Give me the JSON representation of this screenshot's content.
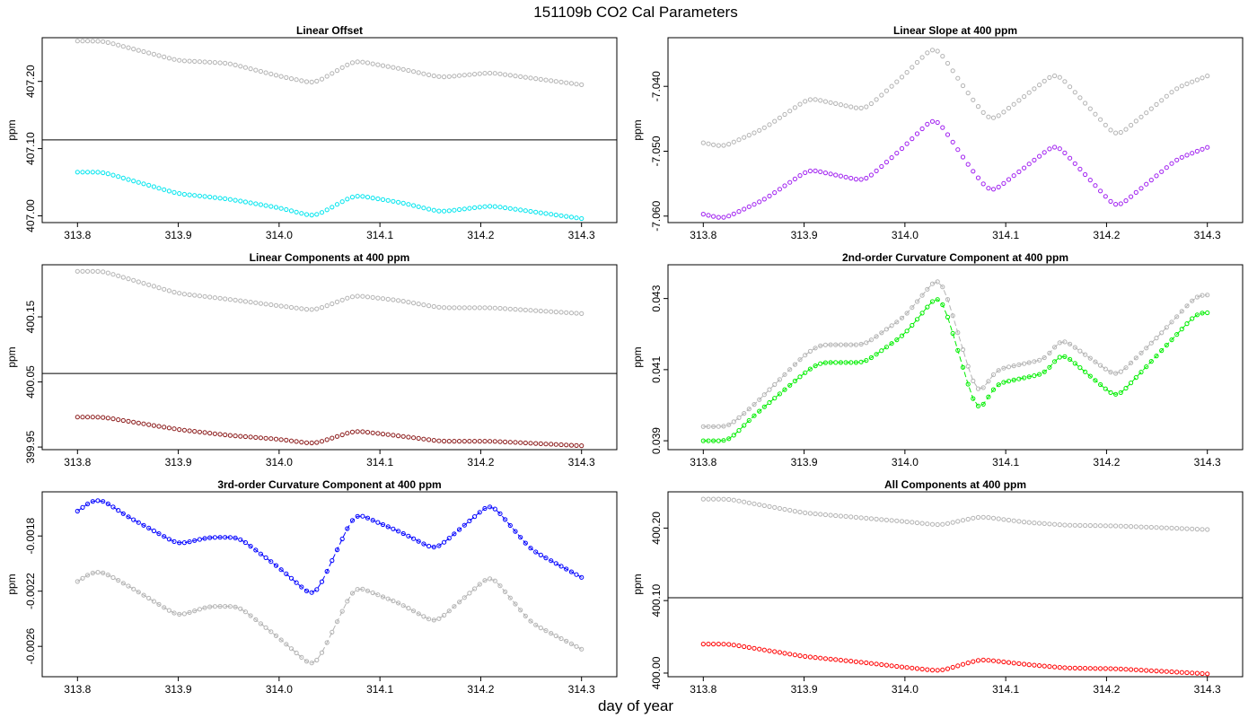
{
  "title": "151109b   CO2 Cal Parameters",
  "xlabel": "day of year",
  "chart_data": [
    {
      "type": "scatter",
      "title": "Linear Offset",
      "ylabel": "ppm",
      "xlim": [
        313.765,
        314.335
      ],
      "ylim": [
        406.99,
        407.265
      ],
      "xticks": [
        313.8,
        313.9,
        314.0,
        314.1,
        314.2,
        314.3
      ],
      "xtick_labels": [
        "313.8",
        "313.9",
        "314.0",
        "314.1",
        "314.2",
        "314.3"
      ],
      "yticks": [
        407.0,
        407.1,
        407.2
      ],
      "ytick_labels": [
        "407.00",
        "407.10",
        "407.20"
      ],
      "ref_line": 407.113,
      "x_start": 313.8,
      "x_end": 314.3,
      "connect": false,
      "ref_color": "#b3b3b3",
      "color": "#00e5ee",
      "ref_knots": [
        [
          313.8,
          407.26
        ],
        [
          313.825,
          407.26
        ],
        [
          313.9,
          407.231
        ],
        [
          313.95,
          407.227
        ],
        [
          314.0,
          407.208
        ],
        [
          314.035,
          407.197
        ],
        [
          314.075,
          407.231
        ],
        [
          314.12,
          407.219
        ],
        [
          314.16,
          407.206
        ],
        [
          314.21,
          407.213
        ],
        [
          314.3,
          407.195
        ]
      ],
      "knots": [
        [
          313.8,
          407.065
        ],
        [
          313.825,
          407.065
        ],
        [
          313.9,
          407.033
        ],
        [
          313.95,
          407.025
        ],
        [
          314.0,
          407.012
        ],
        [
          314.035,
          406.999
        ],
        [
          314.075,
          407.031
        ],
        [
          314.12,
          407.02
        ],
        [
          314.16,
          407.006
        ],
        [
          314.21,
          407.015
        ],
        [
          314.3,
          406.996
        ]
      ]
    },
    {
      "type": "scatter",
      "title": "Linear Slope at 400 ppm",
      "ylabel": "ppm",
      "xlim": [
        313.765,
        314.335
      ],
      "ylim": [
        -7.061,
        -7.0325
      ],
      "xticks": [
        313.8,
        313.9,
        314.0,
        314.1,
        314.2,
        314.3
      ],
      "xtick_labels": [
        "313.8",
        "313.9",
        "314.0",
        "314.1",
        "314.2",
        "314.3"
      ],
      "yticks": [
        -7.06,
        -7.05,
        -7.04
      ],
      "ytick_labels": [
        "-7.060",
        "-7.050",
        "-7.040"
      ],
      "x_start": 313.8,
      "x_end": 314.3,
      "connect": false,
      "ref_color": "#b3b3b3",
      "color": "#a020f0",
      "ref_knots": [
        [
          313.8,
          -7.0487
        ],
        [
          313.82,
          -7.0493
        ],
        [
          313.86,
          -7.0465
        ],
        [
          313.905,
          -7.0418
        ],
        [
          313.96,
          -7.0436
        ],
        [
          313.995,
          -7.0389
        ],
        [
          314.03,
          -7.0336
        ],
        [
          314.065,
          -7.0416
        ],
        [
          314.085,
          -7.0455
        ],
        [
          314.15,
          -7.0378
        ],
        [
          314.21,
          -7.0478
        ],
        [
          314.27,
          -7.0402
        ],
        [
          314.3,
          -7.0384
        ]
      ],
      "knots": [
        [
          313.8,
          -7.0597
        ],
        [
          313.82,
          -7.0604
        ],
        [
          313.86,
          -7.0575
        ],
        [
          313.905,
          -7.0528
        ],
        [
          313.96,
          -7.0546
        ],
        [
          313.995,
          -7.0499
        ],
        [
          314.03,
          -7.0446
        ],
        [
          314.065,
          -7.0526
        ],
        [
          314.085,
          -7.0565
        ],
        [
          314.15,
          -7.0488
        ],
        [
          314.21,
          -7.0588
        ],
        [
          314.27,
          -7.0512
        ],
        [
          314.3,
          -7.0494
        ]
      ]
    },
    {
      "type": "scatter",
      "title": "Linear Components at 400 ppm",
      "ylabel": "ppm",
      "xlim": [
        313.765,
        314.335
      ],
      "ylim": [
        399.946,
        400.23
      ],
      "xticks": [
        313.8,
        313.9,
        314.0,
        314.1,
        314.2,
        314.3
      ],
      "xtick_labels": [
        "313.8",
        "313.9",
        "314.0",
        "314.1",
        "314.2",
        "314.3"
      ],
      "yticks": [
        399.95,
        400.05,
        400.15
      ],
      "ytick_labels": [
        "399.95",
        "400.05",
        "400.15"
      ],
      "ref_line": 400.063,
      "x_start": 313.8,
      "x_end": 314.3,
      "connect": false,
      "ref_color": "#b3b3b3",
      "color": "#8b1a1a",
      "ref_knots": [
        [
          313.8,
          400.22
        ],
        [
          313.825,
          400.22
        ],
        [
          313.9,
          400.186
        ],
        [
          313.95,
          400.177
        ],
        [
          314.0,
          400.167
        ],
        [
          314.035,
          400.16
        ],
        [
          314.075,
          400.183
        ],
        [
          314.12,
          400.175
        ],
        [
          314.16,
          400.164
        ],
        [
          314.21,
          400.164
        ],
        [
          314.3,
          400.155
        ]
      ],
      "knots": [
        [
          313.8,
          399.996
        ],
        [
          313.825,
          399.996
        ],
        [
          313.9,
          399.977
        ],
        [
          313.95,
          399.968
        ],
        [
          314.0,
          399.962
        ],
        [
          314.035,
          399.955
        ],
        [
          314.075,
          399.975
        ],
        [
          314.12,
          399.967
        ],
        [
          314.16,
          399.959
        ],
        [
          314.21,
          399.959
        ],
        [
          314.3,
          399.952
        ]
      ]
    },
    {
      "type": "line",
      "title": "2nd-order Curvature Component at 400 ppm",
      "ylabel": "ppm",
      "xlim": [
        313.765,
        314.335
      ],
      "ylim": [
        0.03875,
        0.04395
      ],
      "xticks": [
        313.8,
        313.9,
        314.0,
        314.1,
        314.2,
        314.3
      ],
      "xtick_labels": [
        "313.8",
        "313.9",
        "314.0",
        "314.1",
        "314.2",
        "314.3"
      ],
      "yticks": [
        0.039,
        0.041,
        0.043
      ],
      "ytick_labels": [
        "0.039",
        "0.041",
        "0.043"
      ],
      "x_start": 313.8,
      "x_end": 314.3,
      "connect": true,
      "ref_color": "#b3b3b3",
      "color": "#00ee00",
      "ref_knots": [
        [
          313.8,
          0.0394
        ],
        [
          313.825,
          0.0394
        ],
        [
          313.85,
          0.04
        ],
        [
          313.9,
          0.0414
        ],
        [
          313.915,
          0.0417
        ],
        [
          313.96,
          0.0417
        ],
        [
          314.0,
          0.0425
        ],
        [
          314.035,
          0.0437
        ],
        [
          314.072,
          0.0402
        ],
        [
          314.09,
          0.041
        ],
        [
          314.14,
          0.0413
        ],
        [
          314.155,
          0.0419
        ],
        [
          314.21,
          0.0408
        ],
        [
          314.25,
          0.0419
        ],
        [
          314.29,
          0.0431
        ],
        [
          314.3,
          0.0431
        ]
      ],
      "knots": [
        [
          313.8,
          0.039
        ],
        [
          313.825,
          0.039
        ],
        [
          313.85,
          0.0397
        ],
        [
          313.9,
          0.0409
        ],
        [
          313.915,
          0.0412
        ],
        [
          313.96,
          0.0412
        ],
        [
          314.0,
          0.042
        ],
        [
          314.035,
          0.0432
        ],
        [
          314.072,
          0.0397
        ],
        [
          314.09,
          0.0406
        ],
        [
          314.14,
          0.0409
        ],
        [
          314.155,
          0.0415
        ],
        [
          314.21,
          0.0402
        ],
        [
          314.25,
          0.0414
        ],
        [
          314.29,
          0.0426
        ],
        [
          314.3,
          0.0426
        ]
      ]
    },
    {
      "type": "line",
      "title": "3rd-order Curvature Component at 400 ppm",
      "ylabel": "ppm",
      "xlim": [
        313.765,
        314.335
      ],
      "ylim": [
        -0.00282,
        -0.00148
      ],
      "xticks": [
        313.8,
        313.9,
        314.0,
        314.1,
        314.2,
        314.3
      ],
      "xtick_labels": [
        "313.8",
        "313.9",
        "314.0",
        "314.1",
        "314.2",
        "314.3"
      ],
      "yticks": [
        -0.0026,
        -0.0022,
        -0.0018
      ],
      "ytick_labels": [
        "-0.0026",
        "-0.0022",
        "-0.0018"
      ],
      "x_start": 313.8,
      "x_end": 314.3,
      "connect": true,
      "ref_color": "#b3b3b3",
      "color": "#0000ff",
      "ref_knots": [
        [
          313.8,
          -0.00213
        ],
        [
          313.815,
          -0.00206
        ],
        [
          313.825,
          -0.00206
        ],
        [
          313.85,
          -0.00216
        ],
        [
          313.9,
          -0.00238
        ],
        [
          313.93,
          -0.00231
        ],
        [
          313.96,
          -0.00231
        ],
        [
          314.0,
          -0.00254
        ],
        [
          314.035,
          -0.00276
        ],
        [
          314.075,
          -0.00216
        ],
        [
          314.12,
          -0.00229
        ],
        [
          314.155,
          -0.00243
        ],
        [
          314.21,
          -0.00208
        ],
        [
          314.25,
          -0.00243
        ],
        [
          314.3,
          -0.00262
        ]
      ],
      "knots": [
        [
          313.8,
          -0.00162
        ],
        [
          313.815,
          -0.00154
        ],
        [
          313.825,
          -0.00154
        ],
        [
          313.85,
          -0.00166
        ],
        [
          313.9,
          -0.00186
        ],
        [
          313.93,
          -0.00181
        ],
        [
          313.96,
          -0.00181
        ],
        [
          314.0,
          -0.00203
        ],
        [
          314.035,
          -0.00225
        ],
        [
          314.075,
          -0.00163
        ],
        [
          314.12,
          -0.00177
        ],
        [
          314.155,
          -0.0019
        ],
        [
          314.21,
          -0.00156
        ],
        [
          314.25,
          -0.0019
        ],
        [
          314.3,
          -0.0021
        ]
      ]
    },
    {
      "type": "scatter",
      "title": "All Components at 400 ppm",
      "ylabel": "ppm",
      "xlim": [
        313.765,
        314.335
      ],
      "ylim": [
        399.995,
        400.25
      ],
      "xticks": [
        313.8,
        313.9,
        314.0,
        314.1,
        314.2,
        314.3
      ],
      "xtick_labels": [
        "313.8",
        "313.9",
        "314.0",
        "314.1",
        "314.2",
        "314.3"
      ],
      "yticks": [
        400.0,
        400.1,
        400.2
      ],
      "ytick_labels": [
        "400.00",
        "400.10",
        "400.20"
      ],
      "ref_line": 400.104,
      "x_start": 313.8,
      "x_end": 314.3,
      "connect": false,
      "ref_color": "#b3b3b3",
      "color": "#ff0000",
      "ref_knots": [
        [
          313.8,
          400.24
        ],
        [
          313.825,
          400.24
        ],
        [
          313.9,
          400.221
        ],
        [
          313.95,
          400.215
        ],
        [
          314.0,
          400.209
        ],
        [
          314.035,
          400.204
        ],
        [
          314.075,
          400.216
        ],
        [
          314.12,
          400.208
        ],
        [
          314.16,
          400.204
        ],
        [
          314.21,
          400.203
        ],
        [
          314.3,
          400.198
        ]
      ],
      "knots": [
        [
          313.8,
          400.04
        ],
        [
          313.825,
          400.04
        ],
        [
          313.9,
          400.023
        ],
        [
          313.95,
          400.016
        ],
        [
          314.0,
          400.008
        ],
        [
          314.035,
          400.003
        ],
        [
          314.075,
          400.019
        ],
        [
          314.12,
          400.012
        ],
        [
          314.16,
          400.007
        ],
        [
          314.21,
          400.006
        ],
        [
          314.3,
          399.999
        ]
      ]
    }
  ]
}
